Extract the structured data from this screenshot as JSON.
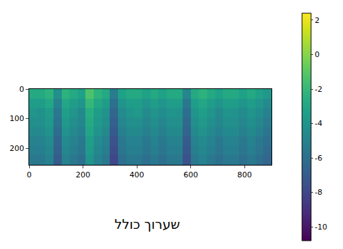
{
  "chart_data": {
    "type": "heatmap",
    "xlabel": "שערוך כולל",
    "color": "Viridis",
    "x": [
      0,
      30,
      60,
      90,
      120,
      150,
      180,
      210,
      240,
      270,
      300,
      330,
      360,
      390,
      420,
      450,
      480,
      510,
      540,
      570,
      600,
      630,
      660,
      690,
      720,
      750,
      780,
      810,
      840,
      870,
      900
    ],
    "y": [
      0,
      32,
      64,
      96,
      128,
      160,
      192,
      224,
      256
    ],
    "z": [
      [
        -2.8,
        -2.8,
        -2.3,
        -4.3,
        -2.3,
        -2.8,
        -3.3,
        -1.3,
        -2.3,
        -2.8,
        -5.3,
        -3.3,
        -2.8,
        -2.8,
        -3.3,
        -2.8,
        -3.3,
        -2.8,
        -2.8,
        -4.8,
        -2.8,
        -2.3,
        -2.8,
        -3.3,
        -2.8,
        -2.8,
        -3.3,
        -2.8,
        -3.3,
        -3.8
      ],
      [
        -3.5,
        -3.5,
        -3,
        -5,
        -3,
        -3.5,
        -4,
        -2,
        -3,
        -3.5,
        -6,
        -4,
        -3.5,
        -3.5,
        -4,
        -3.5,
        -4,
        -3.5,
        -3.5,
        -5.5,
        -3.5,
        -3,
        -3.5,
        -4,
        -3.5,
        -3.5,
        -4,
        -3.5,
        -4,
        -4.5
      ],
      [
        -4,
        -4.2,
        -3.6,
        -5.5,
        -3.4,
        -4,
        -4.6,
        -2.6,
        -3.5,
        -4.1,
        -6.5,
        -4.5,
        -4,
        -3.8,
        -4.5,
        -4,
        -4.4,
        -4,
        -4.1,
        -6,
        -4,
        -3.4,
        -4,
        -4.6,
        -4,
        -4.1,
        -4.5,
        -4,
        -4.4,
        -5
      ],
      [
        -4.3,
        -4.3,
        -3.8,
        -5.8,
        -3.8,
        -4.3,
        -4.8,
        -2.8,
        -3.8,
        -4.3,
        -6.8,
        -4.8,
        -4.3,
        -4.3,
        -4.8,
        -4.3,
        -4.8,
        -4.3,
        -4.3,
        -6.3,
        -4.3,
        -3.8,
        -4.3,
        -4.8,
        -4.3,
        -4.3,
        -4.8,
        -4.3,
        -4.8,
        -5.3
      ],
      [
        -4.6,
        -4.6,
        -4.1,
        -6.1,
        -4.1,
        -4.6,
        -5.1,
        -3.1,
        -4.1,
        -4.6,
        -7.1,
        -5.1,
        -4.6,
        -4.6,
        -5.1,
        -4.6,
        -5.1,
        -4.6,
        -4.6,
        -6.6,
        -4.6,
        -4.1,
        -4.6,
        -5.1,
        -4.6,
        -4.6,
        -5.1,
        -4.6,
        -5.1,
        -5.6
      ],
      [
        -5,
        -5,
        -4.5,
        -6.5,
        -4.5,
        -5,
        -5.5,
        -3.5,
        -4.5,
        -5,
        -7.5,
        -5.5,
        -5,
        -5,
        -5.5,
        -5,
        -5.5,
        -5,
        -5,
        -7,
        -5,
        -4.5,
        -5,
        -5.5,
        -5,
        -5,
        -5.5,
        -5,
        -5.5,
        -6
      ],
      [
        -5.2,
        -5.2,
        -4.7,
        -6.7,
        -4.7,
        -5.2,
        -5.7,
        -3.7,
        -4.7,
        -5.2,
        -7.7,
        -5.7,
        -5.2,
        -5.2,
        -5.7,
        -5.2,
        -5.7,
        -5.2,
        -5.2,
        -7.2,
        -5.2,
        -4.7,
        -5.2,
        -5.7,
        -5.2,
        -5.2,
        -5.7,
        -5.2,
        -5.7,
        -6.2
      ],
      [
        -5.5,
        -5.5,
        -5,
        -7,
        -5,
        -5.5,
        -6,
        -4,
        -5,
        -5.5,
        -8,
        -6,
        -5.5,
        -5.5,
        -6,
        -5.5,
        -6,
        -5.5,
        -5.5,
        -7.5,
        -5.5,
        -5,
        -5.5,
        -6,
        -5.5,
        -5.5,
        -6,
        -5.5,
        -6,
        -6.5
      ]
    ],
    "xlim": [
      0,
      900
    ],
    "ylim": [
      256,
      0
    ],
    "xticks": [
      0,
      200,
      400,
      600,
      800
    ],
    "yticks": [
      0,
      100,
      200
    ],
    "zlim": [
      -10.8,
      2.4
    ],
    "zticks": [
      -10,
      -8,
      -6,
      -4,
      -2,
      0,
      2
    ]
  }
}
